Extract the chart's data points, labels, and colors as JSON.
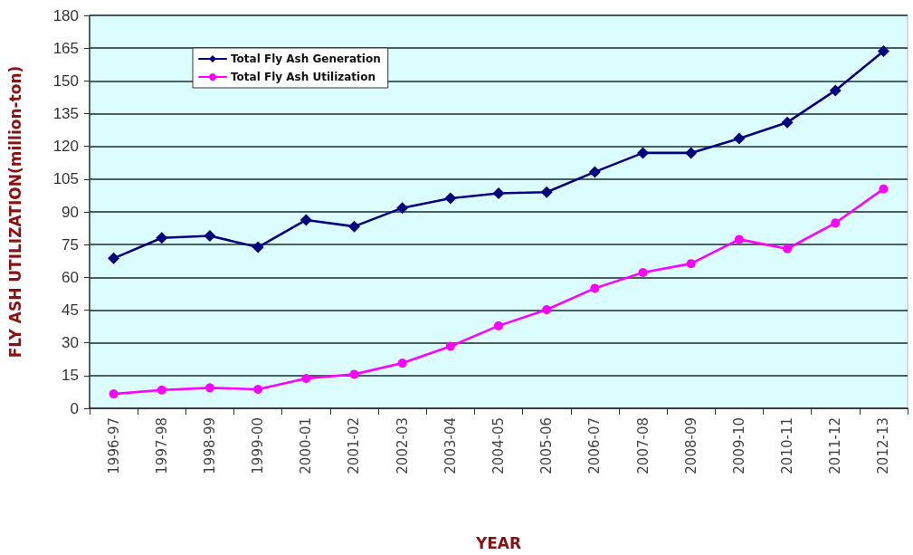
{
  "chart_data": {
    "type": "line",
    "xlabel": "YEAR",
    "ylabel": "FLY ASH UTILIZATION(million-ton)",
    "categories": [
      "1996-97",
      "1997-98",
      "1998-99",
      "1999-00",
      "2000-01",
      "2001-02",
      "2002-03",
      "2003-04",
      "2004-05",
      "2005-06",
      "2006-07",
      "2007-08",
      "2008-09",
      "2009-10",
      "2010-11",
      "2011-12",
      "2012-13"
    ],
    "series": [
      {
        "name": "Total Fly Ash Generation",
        "color": "#000080",
        "marker": "diamond",
        "values": [
          68.7,
          78.1,
          79.0,
          73.8,
          86.3,
          83.3,
          91.8,
          96.2,
          98.5,
          99.0,
          108.3,
          117.0,
          117.0,
          123.6,
          131.0,
          145.6,
          163.6
        ]
      },
      {
        "name": "Total Fly Ash Utilization",
        "color": "#ff00ff",
        "marker": "circle",
        "values": [
          6.6,
          8.4,
          9.4,
          8.7,
          13.7,
          15.6,
          20.7,
          28.4,
          37.8,
          45.2,
          55.0,
          62.2,
          66.3,
          77.4,
          73.1,
          84.9,
          100.5
        ]
      }
    ],
    "ylim": [
      0,
      180
    ],
    "yticks": [
      0,
      15,
      30,
      45,
      60,
      75,
      90,
      105,
      120,
      135,
      150,
      165,
      180
    ],
    "grid": "y",
    "legend": "top left",
    "line_style": "solid"
  }
}
